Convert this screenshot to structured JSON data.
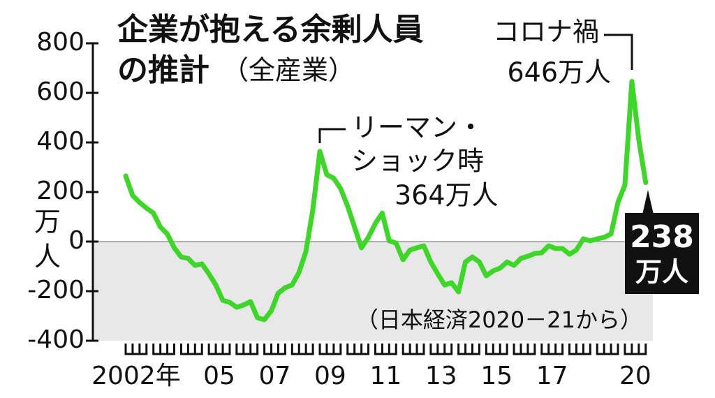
{
  "chart_data": {
    "type": "line",
    "title": [
      "企業が抱える余剰人員",
      "の推計"
    ],
    "subtitle": "（全産業）",
    "y_label": [
      "万",
      "人"
    ],
    "annotations": {
      "covid": "コロナ禍",
      "covid_value": "646万人",
      "lehman": [
        "リーマン・",
        "ショック時"
      ],
      "lehman_value": "364万人",
      "last_value": "238",
      "last_unit": "万人"
    },
    "source": "（日本経済2020－21から）",
    "categories": [
      "2002年",
      null,
      null,
      null,
      null,
      null,
      null,
      null,
      null,
      null,
      null,
      null,
      "05",
      null,
      null,
      null,
      null,
      null,
      null,
      null,
      "07",
      null,
      null,
      null,
      null,
      null,
      null,
      null,
      "09",
      null,
      null,
      null,
      null,
      null,
      null,
      null,
      "11",
      null,
      null,
      null,
      null,
      null,
      null,
      null,
      "13",
      null,
      null,
      null,
      null,
      null,
      null,
      null,
      "15",
      null,
      null,
      null,
      null,
      null,
      null,
      null,
      "17",
      null,
      null,
      null,
      null,
      null,
      null,
      null,
      null,
      null,
      null,
      null,
      "20",
      null,
      null,
      null
    ],
    "series": [
      {
        "name": "余剰人員",
        "color": "#3fd62a",
        "values": [
          265,
          186,
          158,
          135,
          115,
          59,
          31,
          -25,
          -62,
          -68,
          -96,
          -90,
          -130,
          -175,
          -237,
          -245,
          -265,
          -256,
          -242,
          -307,
          -315,
          -279,
          -208,
          -186,
          -175,
          -124,
          -39,
          130,
          364,
          270,
          256,
          214,
          144,
          59,
          -25,
          17,
          73,
          115,
          3,
          -6,
          -73,
          -34,
          -25,
          -17,
          -82,
          -130,
          -175,
          -166,
          -203,
          -82,
          -62,
          -82,
          -138,
          -118,
          -107,
          -82,
          -96,
          -68,
          -59,
          -48,
          -45,
          -17,
          -28,
          -28,
          -51,
          -34,
          11,
          3,
          11,
          17,
          31,
          158,
          228,
          646,
          411,
          238
        ]
      }
    ],
    "ylim": [
      -400,
      800
    ],
    "yticks": [
      -400,
      -200,
      0,
      200,
      400,
      600,
      800
    ]
  }
}
